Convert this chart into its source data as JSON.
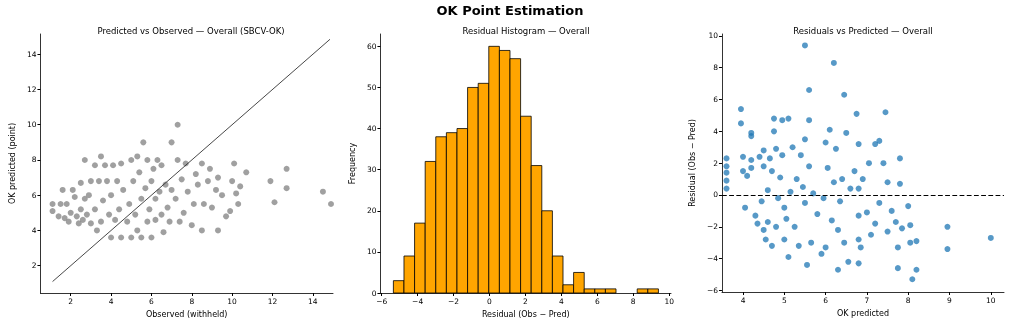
{
  "chart_data": [
    {
      "type": "scatter",
      "title": "Predicted vs Observed — Overall (SBCV-OK)",
      "xlabel": "Observed (withheld)",
      "ylabel": "OK predicted (point)",
      "xlim": [
        0.5,
        15
      ],
      "ylim": [
        0.45,
        15.15
      ],
      "xticks": [
        2,
        4,
        6,
        8,
        10,
        12,
        14
      ],
      "yticks": [
        2,
        4,
        6,
        8,
        10,
        12,
        14
      ],
      "grid": false,
      "marker": "circle",
      "series": [
        {
          "type": "scatter",
          "color": "#808080",
          "x": [
            1.1,
            1.1,
            1.4,
            1.5,
            1.6,
            1.7,
            1.8,
            1.9,
            2.0,
            2.1,
            2.2,
            2.3,
            2.4,
            2.5,
            2.5,
            2.6,
            2.7,
            2.7,
            2.8,
            2.9,
            3.0,
            3.0,
            3.2,
            3.2,
            3.3,
            3.4,
            3.5,
            3.5,
            3.6,
            3.7,
            3.8,
            3.9,
            4.0,
            4.0,
            4.1,
            4.2,
            4.3,
            4.4,
            4.5,
            4.5,
            4.6,
            4.8,
            4.9,
            5.0,
            5.0,
            5.1,
            5.2,
            5.3,
            5.3,
            5.4,
            5.5,
            5.5,
            5.6,
            5.7,
            5.8,
            5.8,
            5.9,
            6.0,
            6.0,
            6.1,
            6.2,
            6.2,
            6.3,
            6.4,
            6.5,
            6.5,
            6.6,
            6.7,
            6.8,
            6.9,
            7.0,
            7.0,
            7.2,
            7.3,
            7.3,
            7.4,
            7.5,
            7.6,
            7.7,
            7.8,
            8.0,
            8.1,
            8.2,
            8.3,
            8.5,
            8.5,
            8.6,
            8.8,
            8.9,
            9.0,
            9.2,
            9.3,
            9.3,
            9.5,
            9.7,
            9.9,
            10.0,
            10.1,
            10.2,
            10.3,
            10.4,
            10.7,
            11.9,
            12.1,
            12.7,
            12.7,
            14.5,
            14.9
          ],
          "values": [
            5.5,
            5.1,
            4.8,
            5.5,
            6.3,
            4.7,
            5.5,
            4.5,
            5.0,
            6.3,
            5.9,
            4.8,
            4.4,
            5.2,
            6.7,
            4.6,
            8.0,
            5.8,
            4.9,
            6.0,
            4.4,
            6.8,
            7.7,
            5.2,
            4.0,
            6.8,
            8.2,
            4.5,
            5.7,
            7.7,
            6.8,
            4.9,
            6.0,
            3.6,
            7.7,
            4.6,
            6.8,
            5.2,
            3.6,
            7.8,
            6.3,
            4.5,
            5.5,
            8.0,
            3.6,
            6.8,
            4.9,
            8.2,
            4.0,
            7.3,
            5.8,
            3.6,
            9.0,
            6.4,
            4.5,
            8.0,
            5.2,
            3.6,
            6.8,
            7.5,
            4.6,
            5.8,
            8.0,
            6.2,
            4.9,
            7.7,
            3.9,
            6.6,
            5.3,
            4.5,
            9.0,
            6.3,
            5.8,
            8.0,
            10.0,
            4.5,
            6.9,
            5.0,
            7.8,
            6.2,
            4.3,
            5.5,
            7.2,
            6.6,
            7.8,
            4.0,
            5.5,
            6.8,
            7.5,
            5.3,
            6.3,
            4.0,
            7.0,
            6.0,
            4.8,
            5.1,
            6.8,
            7.8,
            6.1,
            5.5,
            6.5,
            7.3,
            6.8,
            5.6,
            7.5,
            6.4,
            6.2,
            5.5
          ]
        },
        {
          "type": "line",
          "color": "#333333",
          "marker": "none",
          "line_style": "solid",
          "x": [
            1.1,
            14.85
          ],
          "values": [
            1.1,
            14.85
          ]
        }
      ]
    },
    {
      "type": "histogram",
      "title": "OK Point Estimation",
      "subtitle": "Residual Histogram — Overall",
      "xlabel": "Residual (Obs − Pred)",
      "ylabel": "Frequency",
      "xlim": [
        -6.07,
        10.1
      ],
      "ylim": [
        0,
        63
      ],
      "xticks": [
        {
          "value": -6,
          "label": "−6"
        },
        {
          "value": -4,
          "label": "−4"
        },
        {
          "value": -2,
          "label": "−2"
        },
        0,
        2,
        4,
        6,
        8,
        10
      ],
      "yticks": [
        0,
        10,
        20,
        30,
        40,
        50,
        60
      ],
      "grid": false,
      "color": "#ffa500",
      "bins": [
        -5.35,
        -4.76,
        -4.17,
        -3.58,
        -2.99,
        -2.4,
        -1.81,
        -1.22,
        -0.63,
        -0.04,
        0.55,
        1.14,
        1.73,
        2.32,
        2.91,
        3.5,
        4.09,
        4.68,
        5.27,
        5.86,
        6.45,
        7.04,
        7.63,
        8.22,
        8.81,
        9.4
      ],
      "values": [
        3,
        9,
        17,
        32,
        38,
        39,
        40,
        50,
        51,
        60,
        59,
        57,
        43,
        31,
        20,
        9,
        2,
        5,
        1,
        1,
        1,
        0,
        0,
        1,
        1
      ]
    },
    {
      "type": "scatter",
      "title": "Residuals vs Predicted — Overall",
      "xlabel": "OK predicted",
      "ylabel": "Residual (Obs − Pred)",
      "xlim": [
        3.49,
        10.32
      ],
      "ylim": [
        -6.1,
        10.12
      ],
      "xticks": [
        4,
        5,
        6,
        7,
        8,
        9,
        10
      ],
      "yticks": [
        {
          "value": -6,
          "label": "−6"
        },
        {
          "value": -4,
          "label": "−4"
        },
        {
          "value": -2,
          "label": "−2"
        },
        0,
        2,
        4,
        6,
        8,
        10
      ],
      "grid": false,
      "marker": "circle",
      "ref_lines": [
        {
          "axis": "y",
          "value": 0,
          "color": "#000000",
          "line_style": "dashed"
        }
      ],
      "series": [
        {
          "type": "scatter",
          "color": "#1f77b4",
          "x": [
            3.6,
            3.6,
            3.6,
            3.6,
            3.6,
            3.95,
            3.95,
            4.0,
            4.0,
            4.05,
            4.1,
            4.2,
            4.2,
            4.2,
            4.2,
            4.3,
            4.35,
            4.4,
            4.45,
            4.5,
            4.5,
            4.5,
            4.55,
            4.6,
            4.6,
            4.65,
            4.7,
            4.7,
            4.75,
            4.75,
            4.8,
            4.8,
            4.85,
            4.9,
            4.95,
            4.95,
            5.0,
            5.0,
            5.05,
            5.1,
            5.1,
            5.15,
            5.2,
            5.25,
            5.3,
            5.35,
            5.4,
            5.45,
            5.5,
            5.5,
            5.5,
            5.55,
            5.6,
            5.6,
            5.6,
            5.65,
            5.7,
            5.8,
            5.9,
            5.95,
            6.0,
            6.0,
            6.05,
            6.1,
            6.15,
            6.2,
            6.2,
            6.25,
            6.3,
            6.3,
            6.35,
            6.4,
            6.45,
            6.45,
            6.5,
            6.55,
            6.6,
            6.7,
            6.75,
            6.8,
            6.8,
            6.8,
            6.8,
            6.8,
            6.85,
            6.9,
            7.0,
            7.05,
            7.1,
            7.2,
            7.2,
            7.3,
            7.3,
            7.4,
            7.45,
            7.5,
            7.5,
            7.6,
            7.7,
            7.75,
            7.75,
            7.8,
            7.8,
            7.85,
            8.0,
            8.05,
            8.05,
            8.1,
            8.2,
            8.2,
            8.95,
            8.95,
            10.0
          ],
          "values": [
            2.3,
            1.8,
            1.4,
            0.9,
            0.4,
            5.4,
            4.5,
            2.4,
            1.5,
            -0.8,
            1.2,
            3.9,
            3.7,
            2.2,
            1.7,
            -1.3,
            -1.8,
            2.4,
            -0.4,
            2.8,
            1.8,
            -2.2,
            -2.8,
            0.3,
            -1.7,
            2.3,
            1.5,
            -3.2,
            4.8,
            4.0,
            2.9,
            -2.0,
            -0.2,
            1.1,
            4.7,
            2.5,
            -2.8,
            -0.8,
            -1.5,
            4.8,
            -3.9,
            0.2,
            3.0,
            -2.0,
            1.0,
            -3.2,
            2.5,
            0.5,
            9.4,
            3.5,
            -0.5,
            -4.4,
            6.6,
            4.7,
            1.8,
            -3.0,
            0.1,
            -1.2,
            -3.7,
            -0.2,
            3.3,
            -3.3,
            1.7,
            4.1,
            -1.6,
            8.3,
            0.8,
            2.9,
            -2.2,
            -4.7,
            -0.4,
            1.0,
            6.3,
            -3.0,
            3.9,
            -4.2,
            0.4,
            1.5,
            5.1,
            3.2,
            0.4,
            -1.3,
            -2.8,
            -4.3,
            -3.3,
            1.0,
            -1.1,
            2.0,
            -2.5,
            3.2,
            -1.8,
            3.4,
            -0.5,
            2.0,
            5.2,
            0.8,
            -2.3,
            -1.0,
            -1.7,
            -3.3,
            -4.6,
            2.3,
            0.7,
            -2.1,
            -0.7,
            -1.9,
            -3.0,
            -5.3,
            -2.9,
            -4.7,
            -2.0,
            -3.4,
            -2.7
          ]
        }
      ]
    }
  ]
}
